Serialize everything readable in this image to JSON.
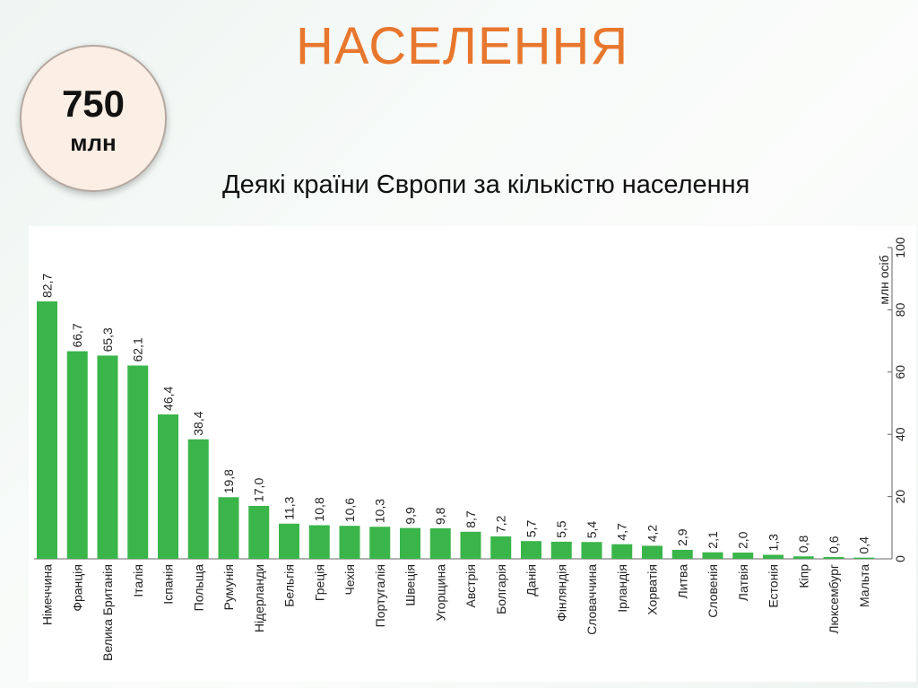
{
  "slide": {
    "title": "НАСЕЛЕННЯ",
    "badge_value": "750",
    "badge_unit": "млн",
    "subtitle": "Деякі країни Європи за кількістю населення"
  },
  "colors": {
    "title": "#e8772e",
    "bar": "#3ab54a"
  },
  "chart_data": {
    "type": "bar",
    "categories": [
      "Німеччина",
      "Франція",
      "Велика Британія",
      "Італія",
      "Іспанія",
      "Польща",
      "Румунія",
      "Нідерланди",
      "Бельгія",
      "Греція",
      "Чехія",
      "Португалія",
      "Швеція",
      "Угорщина",
      "Австрія",
      "Болгарія",
      "Данія",
      "Фінляндія",
      "Словаччина",
      "Ірландія",
      "Хорватія",
      "Литва",
      "Словенія",
      "Латвія",
      "Естонія",
      "Кіпр",
      "Люксембург",
      "Мальта"
    ],
    "values": [
      82.7,
      66.7,
      65.3,
      62.1,
      46.4,
      38.4,
      19.8,
      17.0,
      11.3,
      10.8,
      10.6,
      10.3,
      9.9,
      9.8,
      8.7,
      7.2,
      5.7,
      5.5,
      5.4,
      4.7,
      4.2,
      2.9,
      2.1,
      2.0,
      1.3,
      0.8,
      0.6,
      0.4
    ],
    "value_labels": [
      "82,7",
      "66,7",
      "65,3",
      "62,1",
      "46,4",
      "38,4",
      "19,8",
      "17,0",
      "11,3",
      "10,8",
      "10,6",
      "10,3",
      "9,9",
      "9,8",
      "8,7",
      "7,2",
      "5,7",
      "5,5",
      "5,4",
      "4,7",
      "4,2",
      "2,9",
      "2,1",
      "2,0",
      "1,3",
      "0,8",
      "0,6",
      "0,4"
    ],
    "ylabel": "млн осіб",
    "ylim": [
      0,
      100
    ],
    "yticks": [
      "0",
      "20",
      "40",
      "60",
      "80",
      "100"
    ],
    "axis_side": "right",
    "grid": false
  }
}
